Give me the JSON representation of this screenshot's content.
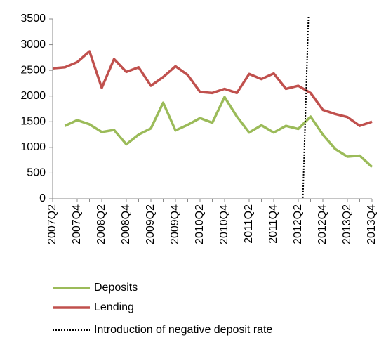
{
  "chart_data": {
    "type": "line",
    "categories": [
      "2007Q2",
      null,
      "2007Q4",
      null,
      "2008Q2",
      null,
      "2008Q4",
      null,
      "2009Q2",
      null,
      "2009Q4",
      null,
      "2010Q2",
      null,
      "2010Q4",
      null,
      "2011Q2",
      null,
      "2011Q4",
      null,
      "2012Q2",
      null,
      "2012Q4",
      null,
      "2013Q2",
      null,
      "2013Q4"
    ],
    "series": [
      {
        "name": "Deposits",
        "color": "#9bbb59",
        "values": [
          null,
          1420,
          1530,
          1450,
          1300,
          1340,
          1060,
          1250,
          1370,
          1870,
          1330,
          1440,
          1570,
          1480,
          1980,
          1600,
          1290,
          1430,
          1290,
          1420,
          1360,
          1600,
          1250,
          970,
          820,
          840,
          620
        ]
      },
      {
        "name": "Lending",
        "color": "#c0504d",
        "values": [
          2540,
          2560,
          2660,
          2870,
          2160,
          2720,
          2470,
          2560,
          2200,
          2370,
          2580,
          2410,
          2080,
          2060,
          2140,
          2060,
          2430,
          2330,
          2440,
          2140,
          2200,
          2060,
          1730,
          1650,
          1590,
          1420,
          1500
        ]
      }
    ],
    "event": {
      "name": "Introduction of negative deposit rate",
      "at": 20.6
    },
    "ylim": [
      0,
      3500
    ],
    "yticks": [
      0,
      500,
      1000,
      1500,
      2000,
      2500,
      3000,
      3500
    ],
    "grid": false
  }
}
